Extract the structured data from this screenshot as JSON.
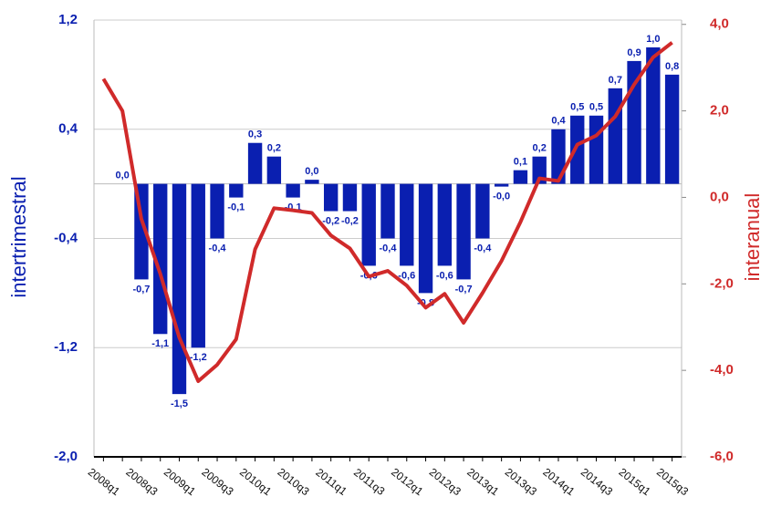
{
  "chart_data": {
    "type": "bar",
    "categories": [
      "2008q1",
      null,
      "2008q3",
      null,
      "2009q1",
      null,
      "2009q3",
      null,
      "2010q1",
      null,
      "2010q3",
      null,
      "2011q1",
      null,
      "2011q3",
      null,
      "2012q1",
      null,
      "2012q3",
      null,
      "2013q1",
      null,
      "2013q3",
      null,
      "2014q1",
      null,
      "2014q3",
      null,
      "2015q1",
      null,
      "2015q3"
    ],
    "y_label": "intertrimestral",
    "y2_label": "interanual",
    "ylim": [
      -2.0,
      1.2
    ],
    "yticks": [
      {
        "value": -2.0,
        "label": "-2,0"
      },
      {
        "value": -1.2,
        "label": "-1,2"
      },
      {
        "value": -0.4,
        "label": "-0,4"
      },
      {
        "value": 0.4,
        "label": "0,4"
      },
      {
        "value": 1.2,
        "label": "1,2"
      }
    ],
    "y2lim": [
      -6.0,
      4.1
    ],
    "y2ticks": [
      {
        "value": -6.0,
        "label": "-6,0"
      },
      {
        "value": -4.0,
        "label": "-4,0"
      },
      {
        "value": -2.0,
        "label": "-2,0"
      },
      {
        "value": 0.0,
        "label": "0,0"
      },
      {
        "value": 2.0,
        "label": "2,0"
      },
      {
        "value": 4.0,
        "label": "4,0"
      }
    ],
    "grid": true,
    "series": [
      {
        "type": "bar",
        "color": "#0a1fb0",
        "values": [
          null,
          0.0,
          -0.7,
          -1.1,
          -1.54,
          -1.2,
          -0.4,
          -0.1,
          0.3,
          0.2,
          -0.1,
          0.03,
          -0.2,
          -0.2,
          -0.6,
          -0.4,
          -0.6,
          -0.8,
          -0.6,
          -0.7,
          -0.4,
          -0.02,
          0.1,
          0.2,
          0.4,
          0.5,
          0.5,
          0.7,
          0.9,
          1.0,
          0.8
        ],
        "value_labels": [
          null,
          "0,0",
          "-0,7",
          "-1,1",
          "-1,5",
          "-1,2",
          "-0,4",
          "-0,1",
          "0,3",
          "0,2",
          "-0,1",
          "0,0",
          "-0,2",
          "-0,2",
          "-0,6",
          "-0,4",
          "-0,6",
          "-0,8",
          "-0,6",
          "-0,7",
          "-0,4",
          "-0,0",
          "0,1",
          "0,2",
          "0,4",
          "0,5",
          "0,5",
          "0,7",
          "0,9",
          "1,0",
          "0,8"
        ]
      },
      {
        "type": "line",
        "axis": "y2",
        "color": "#d02a2a",
        "values": [
          2.74,
          2.0,
          -0.5,
          -1.77,
          -3.24,
          -4.25,
          -3.87,
          -3.28,
          -1.2,
          -0.25,
          -0.3,
          -0.36,
          -0.88,
          -1.18,
          -1.83,
          -1.7,
          -2.04,
          -2.55,
          -2.23,
          -2.9,
          -2.21,
          -1.47,
          -0.57,
          0.44,
          0.38,
          1.22,
          1.43,
          1.87,
          2.61,
          3.24,
          3.58
        ]
      }
    ]
  }
}
